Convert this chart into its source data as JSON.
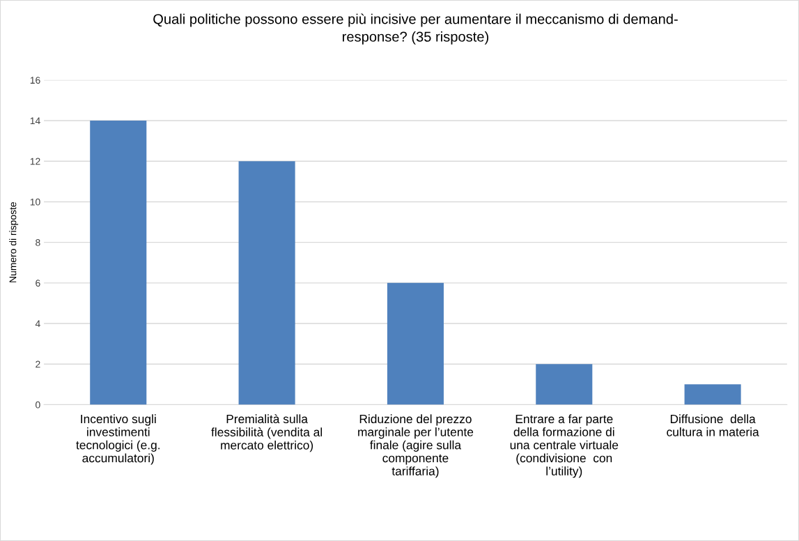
{
  "chart_data": {
    "type": "bar",
    "title": "Quali politiche possono essere più incisive per aumentare il meccanismo di demand-\nresponse? (35 risposte)",
    "ylabel": "Numero di risposte",
    "categories": [
      "Incentivo sugli\ninvestimenti\ntecnologici (e.g.\naccumulatori)",
      "Premialità sulla\nflessibilità (vendita al\nmercato elettrico)",
      "Riduzione del prezzo\nmarginale per l’utente\nfinale (agire sulla\ncomponente\ntariffaria)",
      "Entrare a far parte\ndella formazione di\nuna centrale virtuale\n(condivisione  con\nl’utility)",
      "Diffusione  della\ncultura in materia"
    ],
    "values": [
      14,
      12,
      6,
      2,
      1
    ],
    "color": "#4f81bd",
    "ylim": [
      0,
      16
    ],
    "yticks": [
      0,
      2,
      4,
      6,
      8,
      10,
      12,
      14,
      16
    ],
    "grid": "y"
  }
}
